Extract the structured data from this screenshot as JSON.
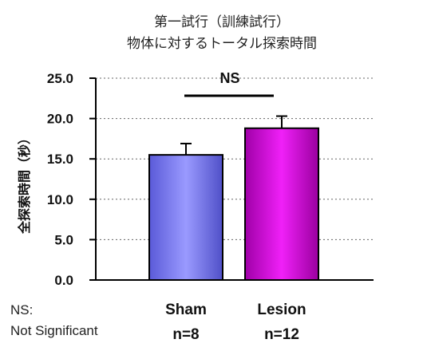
{
  "chart_data": {
    "type": "bar",
    "title_line1": "第一試行（訓練試行）",
    "title_line2": "物体に対するトータル探索時間",
    "ylabel": "全探索時間（秒）",
    "ylim": [
      0,
      25
    ],
    "yticks": [
      "0.0",
      "5.0",
      "10.0",
      "15.0",
      "20.0",
      "25.0"
    ],
    "grid": "horizontal dotted",
    "categories": [
      "Sham",
      "Lesion"
    ],
    "sample_sizes": [
      "n=8",
      "n=12"
    ],
    "values": [
      15.5,
      18.8
    ],
    "errors": [
      1.4,
      1.5
    ],
    "colors": [
      "#8080ff",
      "#d000d8"
    ],
    "significance_label": "NS",
    "note_line1": "NS:",
    "note_line2": "Not Significant"
  }
}
